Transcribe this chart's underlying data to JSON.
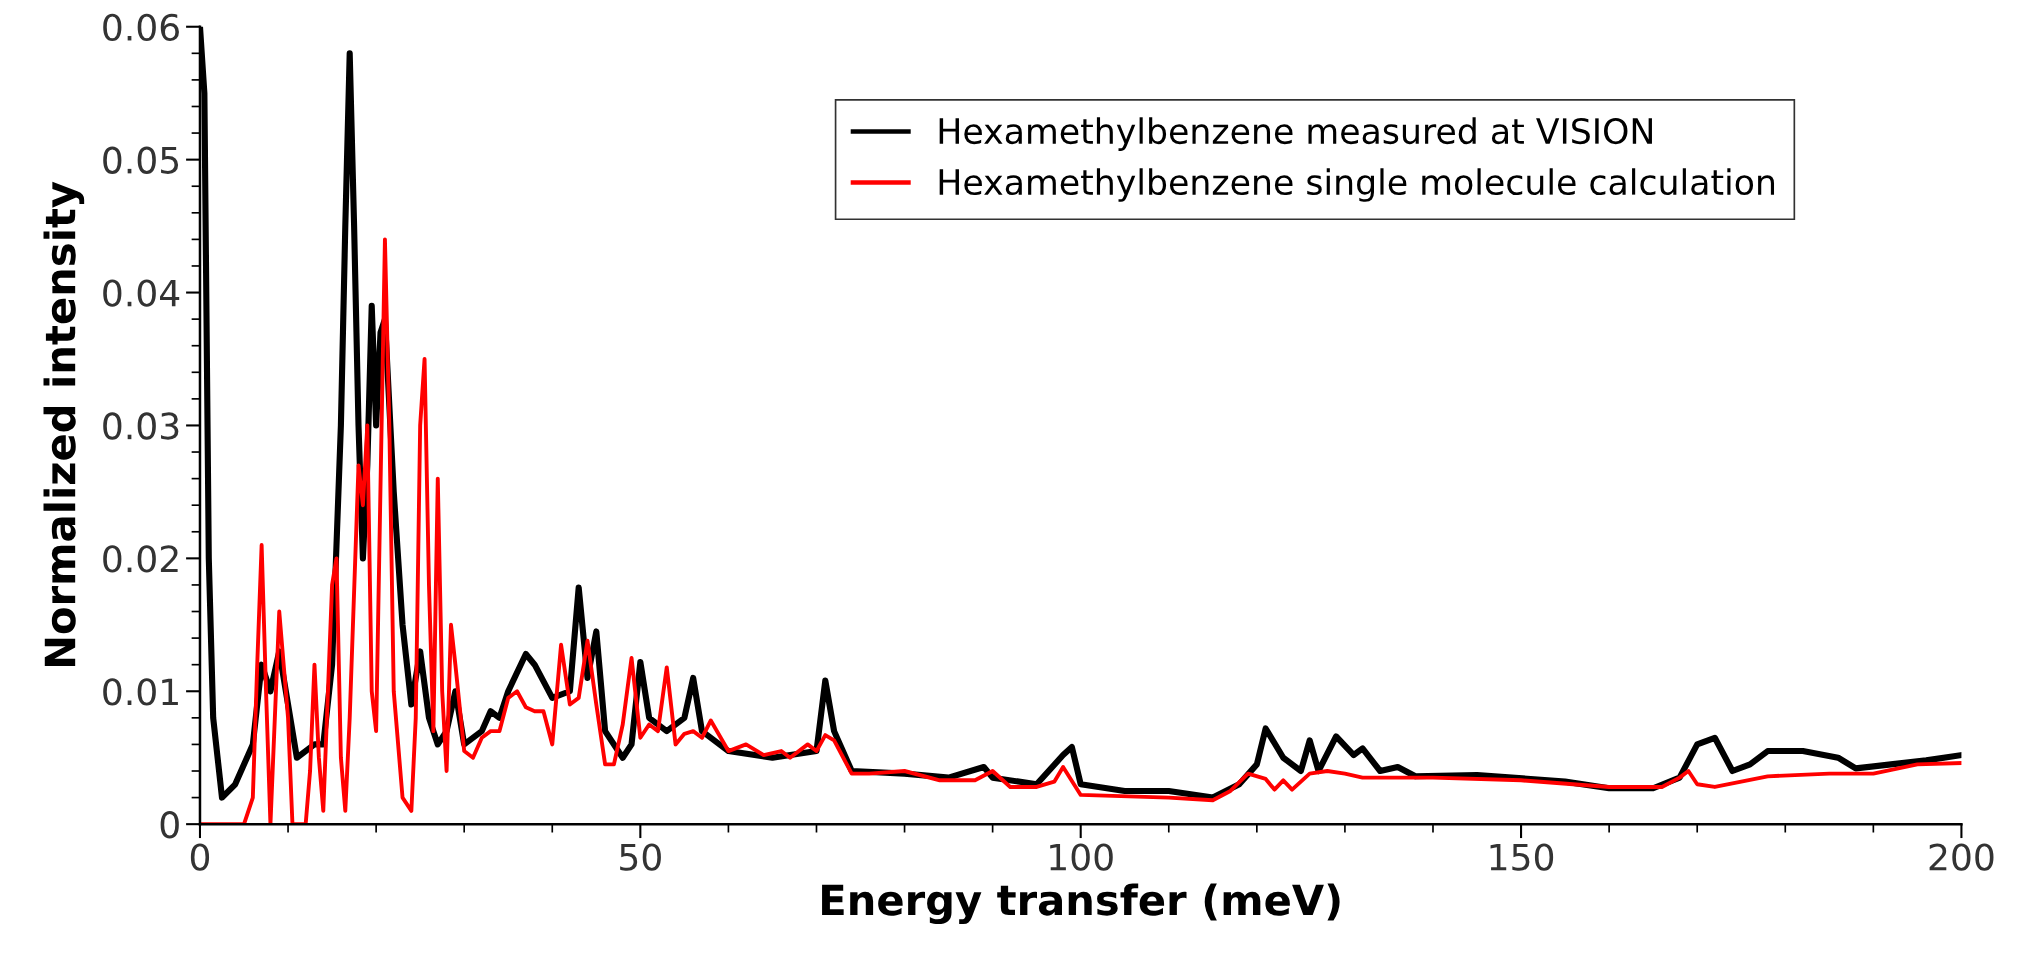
{
  "chart_data": {
    "type": "line",
    "xlabel": "Energy transfer (meV)",
    "ylabel": "Normalized intensity",
    "xlim": [
      0,
      200
    ],
    "ylim": [
      0,
      0.06
    ],
    "xticks": [
      0,
      {
        "value": 10,
        "label": null
      },
      {
        "value": 20,
        "label": null
      },
      {
        "value": 30,
        "label": null
      },
      {
        "value": 40,
        "label": null
      },
      50,
      {
        "value": 60,
        "label": null
      },
      {
        "value": 70,
        "label": null
      },
      {
        "value": 80,
        "label": null
      },
      {
        "value": 90,
        "label": null
      },
      100,
      {
        "value": 110,
        "label": null
      },
      {
        "value": 120,
        "label": null
      },
      {
        "value": 130,
        "label": null
      },
      {
        "value": 140,
        "label": null
      },
      150,
      {
        "value": 160,
        "label": null
      },
      {
        "value": 170,
        "label": null
      },
      {
        "value": 180,
        "label": null
      },
      {
        "value": 190,
        "label": null
      },
      200
    ],
    "yticks": [
      0,
      {
        "value": 0.002,
        "label": null
      },
      {
        "value": 0.004,
        "label": null
      },
      {
        "value": 0.006,
        "label": null
      },
      {
        "value": 0.008,
        "label": null
      },
      0.01,
      {
        "value": 0.012,
        "label": null
      },
      {
        "value": 0.014,
        "label": null
      },
      {
        "value": 0.016,
        "label": null
      },
      {
        "value": 0.018,
        "label": null
      },
      0.02,
      {
        "value": 0.022,
        "label": null
      },
      {
        "value": 0.024,
        "label": null
      },
      {
        "value": 0.026,
        "label": null
      },
      {
        "value": 0.028,
        "label": null
      },
      0.03,
      {
        "value": 0.032,
        "label": null
      },
      {
        "value": 0.034,
        "label": null
      },
      {
        "value": 0.036,
        "label": null
      },
      {
        "value": 0.038,
        "label": null
      },
      0.04,
      {
        "value": 0.042,
        "label": null
      },
      {
        "value": 0.044,
        "label": null
      },
      {
        "value": 0.046,
        "label": null
      },
      {
        "value": 0.048,
        "label": null
      },
      0.05,
      {
        "value": 0.052,
        "label": null
      },
      {
        "value": 0.054,
        "label": null
      },
      {
        "value": 0.056,
        "label": null
      },
      {
        "value": 0.058,
        "label": null
      },
      0.06
    ],
    "grid": false,
    "legend": "top right",
    "marker": "none",
    "line_style": "solid",
    "series": [
      {
        "name": "Hexamethylbenzene measured at VISION",
        "color": "#000000",
        "x": [
          0,
          0.5,
          1,
          1.5,
          2.5,
          4,
          6,
          7,
          8,
          9,
          10,
          11,
          13,
          14,
          15,
          16,
          16.5,
          17,
          17.5,
          18,
          18.5,
          19,
          19.5,
          20,
          20.5,
          21,
          22,
          23,
          24,
          25,
          26,
          27,
          28,
          29,
          30,
          32,
          33,
          34,
          35,
          37,
          38,
          40,
          42,
          43,
          44,
          45,
          46,
          48,
          49,
          50,
          51,
          53,
          55,
          56,
          57,
          60,
          65,
          70,
          71,
          72,
          74,
          80,
          85,
          89,
          90,
          95,
          98,
          99,
          100,
          105,
          110,
          115,
          118,
          120,
          121,
          123,
          125,
          126,
          127,
          129,
          131,
          132,
          134,
          136,
          138,
          145,
          155,
          160,
          165,
          168,
          170,
          172,
          174,
          176,
          178,
          182,
          186,
          188,
          192,
          196,
          200
        ],
        "values": [
          0.06,
          0.055,
          0.02,
          0.008,
          0.002,
          0.003,
          0.006,
          0.012,
          0.01,
          0.013,
          0.009,
          0.005,
          0.006,
          0.006,
          0.012,
          0.03,
          0.045,
          0.058,
          0.045,
          0.03,
          0.02,
          0.027,
          0.039,
          0.03,
          0.037,
          0.038,
          0.025,
          0.015,
          0.009,
          0.013,
          0.008,
          0.006,
          0.007,
          0.01,
          0.006,
          0.007,
          0.0085,
          0.008,
          0.01,
          0.0128,
          0.012,
          0.0095,
          0.01,
          0.0178,
          0.011,
          0.0145,
          0.007,
          0.005,
          0.006,
          0.0122,
          0.008,
          0.007,
          0.008,
          0.011,
          0.007,
          0.0055,
          0.005,
          0.0055,
          0.0108,
          0.007,
          0.004,
          0.0038,
          0.0035,
          0.0043,
          0.0035,
          0.003,
          0.0052,
          0.0058,
          0.003,
          0.0025,
          0.0025,
          0.002,
          0.003,
          0.0045,
          0.0072,
          0.005,
          0.004,
          0.0063,
          0.004,
          0.0066,
          0.0052,
          0.0057,
          0.004,
          0.0043,
          0.0036,
          0.0037,
          0.0032,
          0.0027,
          0.0027,
          0.0035,
          0.006,
          0.0065,
          0.004,
          0.0045,
          0.0055,
          0.0055,
          0.005,
          0.0042,
          0.0045,
          0.0048,
          0.0052
        ]
      },
      {
        "name": "Hexamethylbenzene single molecule calculation",
        "color": "#ff0000",
        "x": [
          0,
          5,
          6,
          6.5,
          7,
          7.5,
          8,
          8.5,
          9,
          10,
          10.5,
          12,
          12.5,
          13,
          13.5,
          14,
          15,
          15.5,
          16,
          16.5,
          17,
          18,
          18.5,
          19,
          19.5,
          20,
          21,
          21.5,
          22,
          23,
          24,
          24.5,
          25,
          25.5,
          26,
          26.5,
          27,
          27.5,
          28,
          28.5,
          29,
          30,
          31,
          32,
          33,
          34,
          35,
          36,
          37,
          38,
          39,
          40,
          41,
          42,
          43,
          44,
          45,
          46,
          47,
          48,
          49,
          50,
          51,
          52,
          53,
          54,
          55,
          56,
          57,
          58,
          60,
          62,
          64,
          66,
          67,
          69,
          70,
          71,
          72,
          74,
          76,
          80,
          84,
          88,
          90,
          92,
          95,
          97,
          98,
          100,
          110,
          115,
          117,
          119,
          121,
          122,
          123,
          124,
          126,
          128,
          130,
          132,
          140,
          150,
          160,
          166,
          168,
          169,
          170,
          172,
          178,
          185,
          190,
          195,
          200
        ],
        "values": [
          0,
          0,
          0.002,
          0.012,
          0.021,
          0.01,
          0,
          0.008,
          0.016,
          0.008,
          0,
          0,
          0.004,
          0.012,
          0.005,
          0.001,
          0.018,
          0.02,
          0.005,
          0.001,
          0.008,
          0.027,
          0.024,
          0.03,
          0.01,
          0.007,
          0.044,
          0.03,
          0.01,
          0.002,
          0.001,
          0.008,
          0.03,
          0.035,
          0.018,
          0.007,
          0.026,
          0.01,
          0.004,
          0.015,
          0.012,
          0.0055,
          0.005,
          0.0065,
          0.007,
          0.007,
          0.0095,
          0.01,
          0.0088,
          0.0085,
          0.0085,
          0.006,
          0.0135,
          0.009,
          0.0095,
          0.0138,
          0.009,
          0.0045,
          0.0045,
          0.0075,
          0.0125,
          0.0065,
          0.0075,
          0.007,
          0.0118,
          0.006,
          0.0068,
          0.007,
          0.0065,
          0.0078,
          0.0055,
          0.006,
          0.0052,
          0.0055,
          0.005,
          0.006,
          0.0055,
          0.0067,
          0.0063,
          0.0038,
          0.0038,
          0.004,
          0.0033,
          0.0033,
          0.004,
          0.0028,
          0.0028,
          0.0032,
          0.0043,
          0.0022,
          0.002,
          0.0018,
          0.0025,
          0.0038,
          0.0034,
          0.0026,
          0.0033,
          0.0026,
          0.0038,
          0.004,
          0.0038,
          0.0035,
          0.0035,
          0.0033,
          0.0028,
          0.0028,
          0.0035,
          0.004,
          0.003,
          0.0028,
          0.0036,
          0.0038,
          0.0038,
          0.0045,
          0.0046
        ]
      }
    ]
  }
}
